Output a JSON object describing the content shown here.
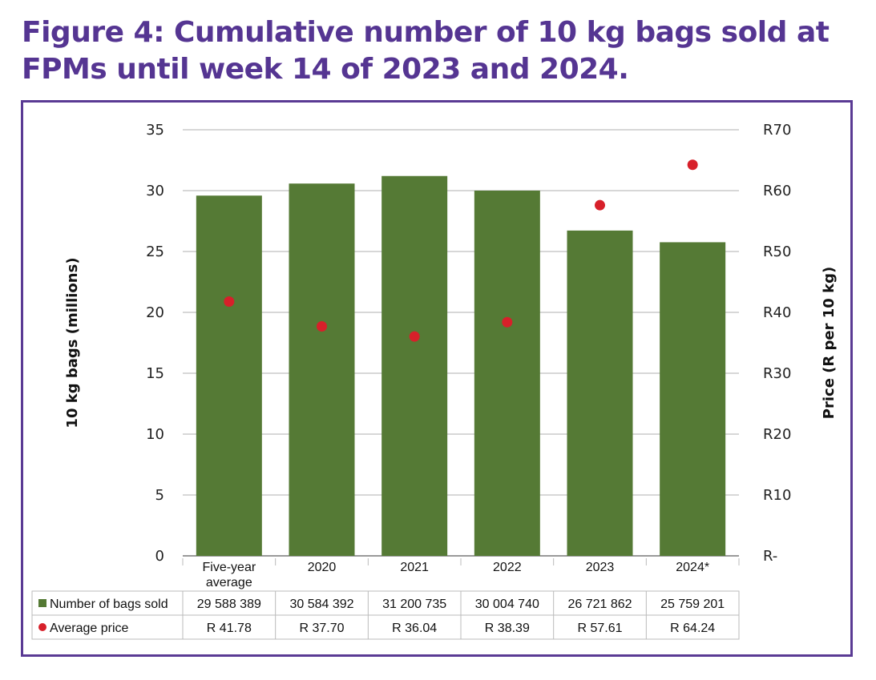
{
  "figure": {
    "title": "Figure 4: Cumulative number of 10 kg bags sold at FPMs until week 14 of 2023 and 2024."
  },
  "colors": {
    "title": "#553592",
    "frame": "#5a3a94",
    "bars": "#557a35",
    "dots": "#d7202a",
    "grid": "#bfbfbf"
  },
  "chart_data": {
    "type": "bar",
    "title": "Figure 4: Cumulative number of 10 kg bags sold at FPMs until week 14 of 2023 and 2024.",
    "categories": [
      "Five-year average",
      "2020",
      "2021",
      "2022",
      "2023",
      "2024*"
    ],
    "category_lines": [
      [
        "Five-year",
        "average"
      ],
      [
        "2020"
      ],
      [
        "2021"
      ],
      [
        "2022"
      ],
      [
        "2023"
      ],
      [
        "2024*"
      ]
    ],
    "series": [
      {
        "name": "Number of bags sold",
        "type": "bar",
        "axis": "left",
        "values": [
          29588389,
          30584392,
          31200735,
          30004740,
          26721862,
          25759201
        ],
        "values_millions": [
          29.59,
          30.58,
          31.2,
          30.0,
          26.72,
          25.76
        ],
        "table_labels": [
          "29 588 389",
          "30 584 392",
          "31 200 735",
          "30 004 740",
          "26 721 862",
          "25 759 201"
        ]
      },
      {
        "name": "Average price",
        "type": "scatter",
        "axis": "right",
        "values": [
          41.78,
          37.7,
          36.04,
          38.39,
          57.61,
          64.24
        ],
        "table_labels": [
          "R 41.78",
          "R 37.70",
          "R 36.04",
          "R 38.39",
          "R 57.61",
          "R 64.24"
        ]
      }
    ],
    "ylabel": "10 kg bags (millions)",
    "ylim": [
      0,
      35
    ],
    "yticks": [
      0,
      5,
      10,
      15,
      20,
      25,
      30,
      35
    ],
    "y2label": "Price (R per 10 kg)",
    "y2lim": [
      0,
      70
    ],
    "y2ticks": [
      "R-",
      "R10",
      "R20",
      "R30",
      "R40",
      "R50",
      "R60",
      "R70"
    ],
    "grid": true,
    "legend": "data-table-below"
  }
}
